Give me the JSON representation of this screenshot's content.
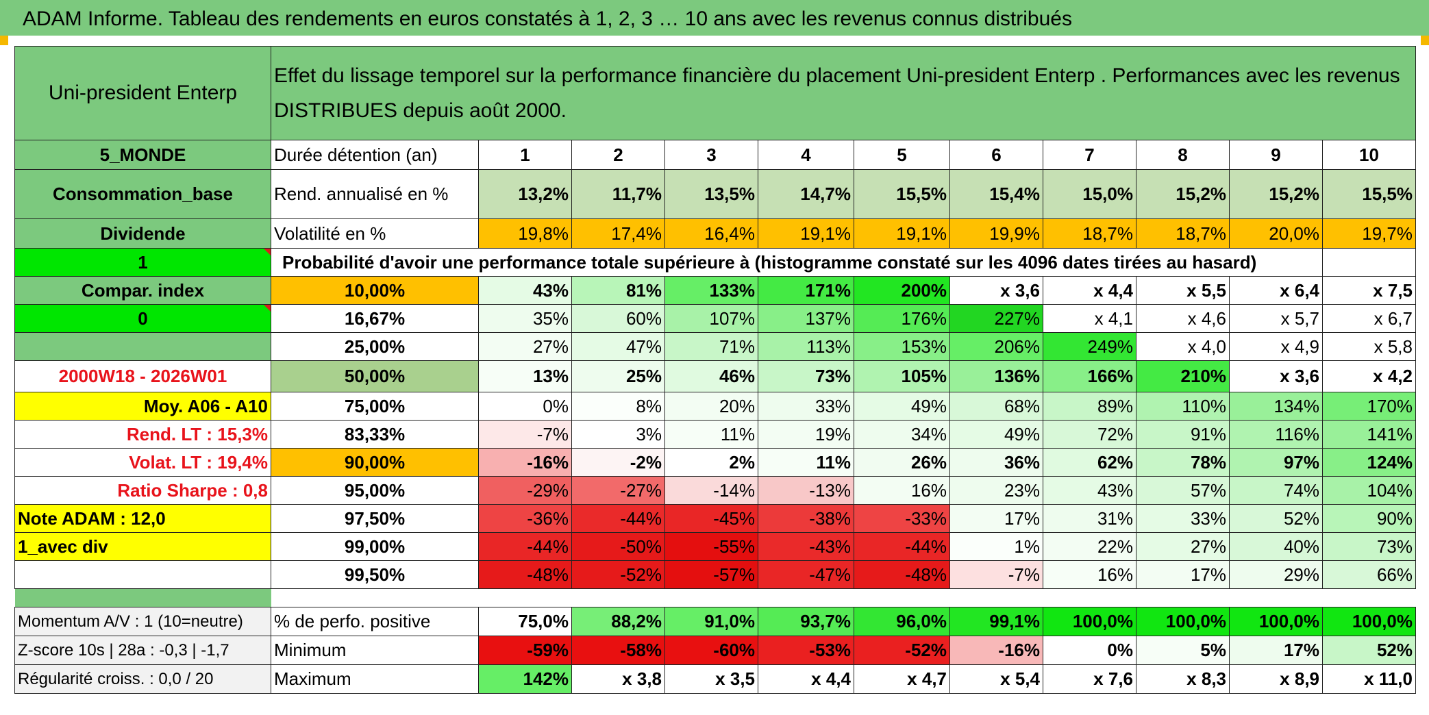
{
  "title": "ADAM Informe. Tableau des rendements en euros constatés à 1, 2, 3 … 10 ans avec les revenus connus distribués",
  "fund_name": "Uni-president Enterp",
  "description": "Effet du lissage temporel sur la performance financière du placement Uni-president Enterp . Performances avec les revenus DISTRIBUES depuis août 2000.",
  "left": {
    "region": "5_MONDE",
    "sector": "Consommation_base",
    "income": "Dividende",
    "one": "1",
    "compar": "Compar. index",
    "zero": "0",
    "blank": "",
    "period": "2000W18 - 2026W01",
    "moy": "Moy. A06 - A10",
    "rend_lt": "Rend. LT :   15,3%",
    "volat_lt": "Volat. LT :   19,4%",
    "sharpe": "Ratio Sharpe :    0,8",
    "note": "Note ADAM : 12,0",
    "avec_div": "1_avec div",
    "momentum": "Momentum A/V : 1 (10=neutre)",
    "zscore": "Z-score 10s | 28a : -0,3 | -1,7",
    "regularite": "Régularité croiss. : 0,0 / 20"
  },
  "labels": {
    "duree": "Durée détention (an)",
    "rend": "Rend. annualisé en %",
    "vol": "Volatilité en %",
    "proba": "Probabilité d'avoir une performance totale supérieure à (histogramme constaté sur les 4096 dates tirées au hasard)",
    "positive": "% de perfo. positive",
    "minimum": "Minimum",
    "maximum": "Maximum"
  },
  "years": [
    "1",
    "2",
    "3",
    "4",
    "5",
    "6",
    "7",
    "8",
    "9",
    "10"
  ],
  "rend": [
    "13,2%",
    "11,7%",
    "13,5%",
    "14,7%",
    "15,5%",
    "15,4%",
    "15,0%",
    "15,2%",
    "15,2%",
    "15,5%"
  ],
  "vol": [
    "19,8%",
    "17,4%",
    "16,4%",
    "19,1%",
    "19,1%",
    "19,9%",
    "18,7%",
    "18,7%",
    "20,0%",
    "19,7%"
  ],
  "prob_rows": [
    {
      "p": "10,00%",
      "v": [
        "43%",
        "81%",
        "133%",
        "171%",
        "200%",
        "x 3,6",
        "x 4,4",
        "x 5,5",
        "x 6,4",
        "x 7,5"
      ]
    },
    {
      "p": "16,67%",
      "v": [
        "35%",
        "60%",
        "107%",
        "137%",
        "176%",
        "227%",
        "x 4,1",
        "x 4,6",
        "x 5,7",
        "x 6,7"
      ]
    },
    {
      "p": "25,00%",
      "v": [
        "27%",
        "47%",
        "71%",
        "113%",
        "153%",
        "206%",
        "249%",
        "x 4,0",
        "x 4,9",
        "x 5,8"
      ]
    },
    {
      "p": "50,00%",
      "v": [
        "13%",
        "25%",
        "46%",
        "73%",
        "105%",
        "136%",
        "166%",
        "210%",
        "x 3,6",
        "x 4,2"
      ]
    },
    {
      "p": "75,00%",
      "v": [
        "0%",
        "8%",
        "20%",
        "33%",
        "49%",
        "68%",
        "89%",
        "110%",
        "134%",
        "170%"
      ]
    },
    {
      "p": "83,33%",
      "v": [
        "-7%",
        "3%",
        "11%",
        "19%",
        "34%",
        "49%",
        "72%",
        "91%",
        "116%",
        "141%"
      ]
    },
    {
      "p": "90,00%",
      "v": [
        "-16%",
        "-2%",
        "2%",
        "11%",
        "26%",
        "36%",
        "62%",
        "78%",
        "97%",
        "124%"
      ]
    },
    {
      "p": "95,00%",
      "v": [
        "-29%",
        "-27%",
        "-14%",
        "-13%",
        "16%",
        "23%",
        "43%",
        "57%",
        "74%",
        "104%"
      ]
    },
    {
      "p": "97,50%",
      "v": [
        "-36%",
        "-44%",
        "-45%",
        "-38%",
        "-33%",
        "17%",
        "31%",
        "33%",
        "52%",
        "90%"
      ]
    },
    {
      "p": "99,00%",
      "v": [
        "-44%",
        "-50%",
        "-55%",
        "-43%",
        "-44%",
        "1%",
        "22%",
        "27%",
        "40%",
        "73%"
      ]
    },
    {
      "p": "99,50%",
      "v": [
        "-48%",
        "-52%",
        "-57%",
        "-47%",
        "-48%",
        "-7%",
        "16%",
        "17%",
        "29%",
        "66%"
      ]
    }
  ],
  "positive": [
    "75,0%",
    "88,2%",
    "91,0%",
    "93,7%",
    "96,0%",
    "99,1%",
    "100,0%",
    "100,0%",
    "100,0%",
    "100,0%"
  ],
  "minimum": [
    "-59%",
    "-58%",
    "-60%",
    "-53%",
    "-52%",
    "-16%",
    "0%",
    "5%",
    "17%",
    "52%"
  ],
  "maximum": [
    "142%",
    "x 3,8",
    "x 3,5",
    "x 4,4",
    "x 4,7",
    "x 5,4",
    "x 7,6",
    "x 8,3",
    "x 8,9",
    "x 11,0"
  ],
  "colors": {
    "header_green": "#7cc97e",
    "bright_green": "#00e600",
    "yellow": "#ffff00",
    "orange": "#ffc000",
    "red": "#ff0000",
    "label_red": "#e8131b"
  }
}
